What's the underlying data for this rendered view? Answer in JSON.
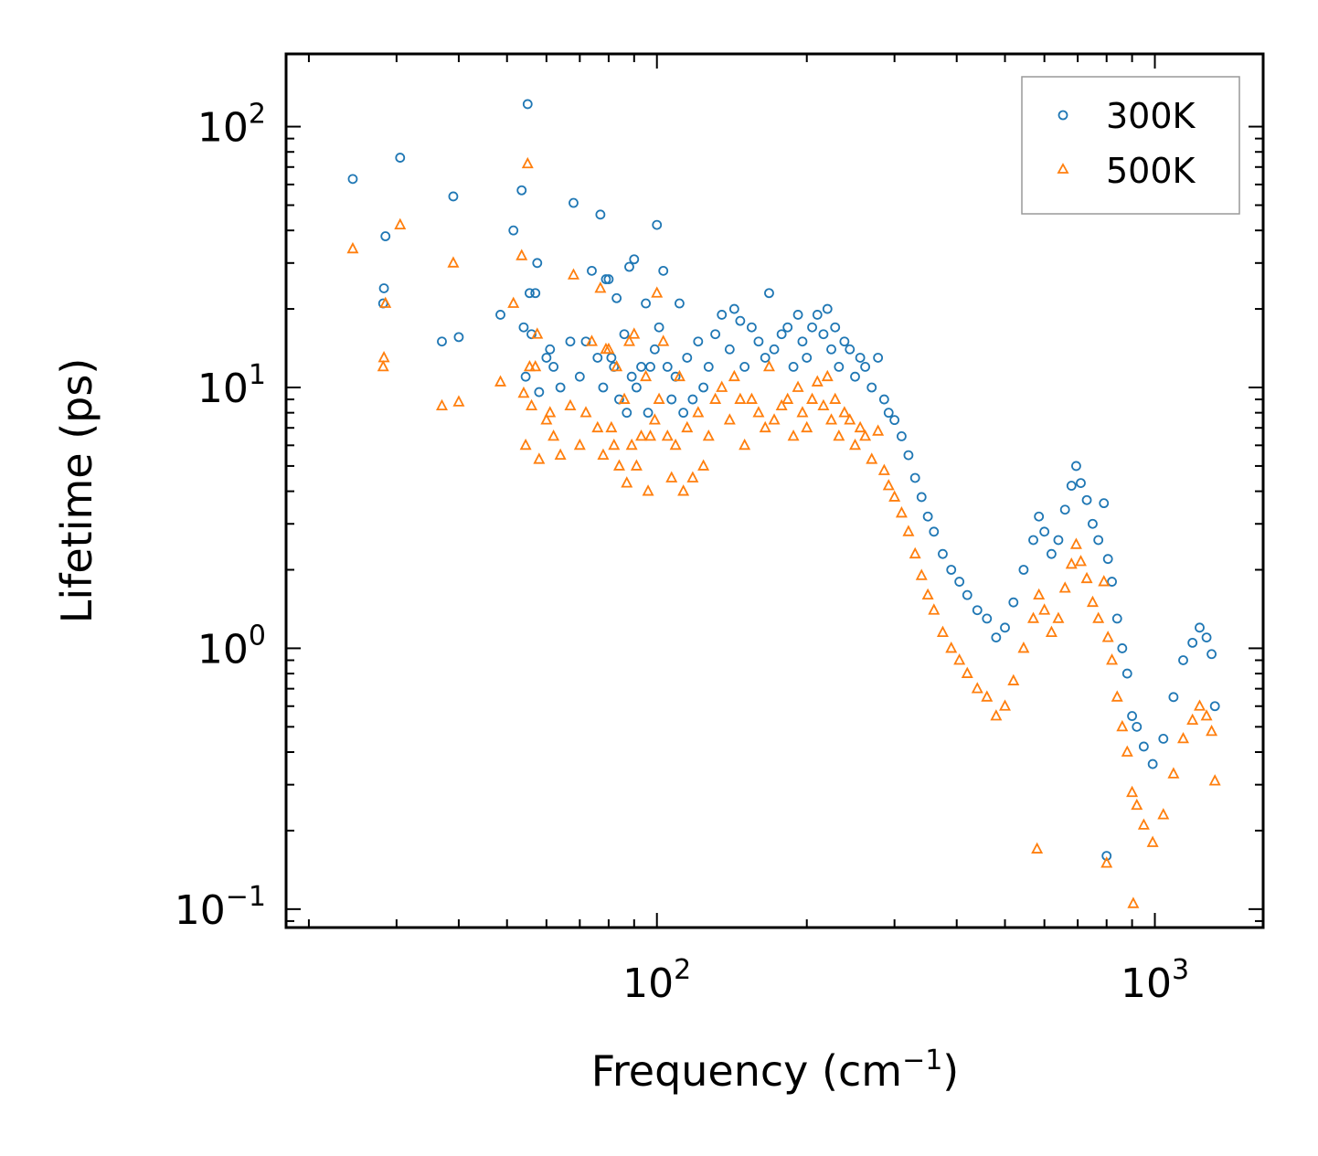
{
  "chart_data": {
    "type": "scatter",
    "title": "",
    "xlabel": "Frequency (cm",
    "xlabel_superscript": "−1",
    "xlabel_suffix": ")",
    "ylabel": "Lifetime (ps)",
    "xscale": "log",
    "yscale": "log",
    "xlim": [
      18,
      1650
    ],
    "ylim": [
      0.085,
      190
    ],
    "grid": false,
    "legend_position": "top-right",
    "x_tick_labels": [
      {
        "value": 100,
        "base": "10",
        "exp": "2"
      },
      {
        "value": 1000,
        "base": "10",
        "exp": "3"
      }
    ],
    "y_tick_labels": [
      {
        "value": 0.1,
        "base": "10",
        "exp": "−1"
      },
      {
        "value": 1,
        "base": "10",
        "exp": "0"
      },
      {
        "value": 10,
        "base": "10",
        "exp": "1"
      },
      {
        "value": 100,
        "base": "10",
        "exp": "2"
      }
    ],
    "series": [
      {
        "name": "300K",
        "marker": "circle",
        "color": "#1f77b4",
        "points": [
          [
            24.5,
            63
          ],
          [
            28.5,
            38
          ],
          [
            28.3,
            24
          ],
          [
            28.2,
            21
          ],
          [
            30.5,
            76
          ],
          [
            37,
            15
          ],
          [
            39,
            54
          ],
          [
            40,
            15.6
          ],
          [
            48.5,
            19
          ],
          [
            51.5,
            40
          ],
          [
            53.5,
            57
          ],
          [
            54,
            17
          ],
          [
            54.5,
            11
          ],
          [
            55,
            122
          ],
          [
            55.5,
            23
          ],
          [
            56,
            16
          ],
          [
            57,
            23
          ],
          [
            57.5,
            30
          ],
          [
            58,
            9.6
          ],
          [
            60,
            13
          ],
          [
            61,
            14
          ],
          [
            62,
            12
          ],
          [
            64,
            10
          ],
          [
            67,
            15
          ],
          [
            68,
            51
          ],
          [
            70,
            11
          ],
          [
            72,
            15
          ],
          [
            74,
            28
          ],
          [
            76,
            13
          ],
          [
            77,
            46
          ],
          [
            78,
            10
          ],
          [
            79,
            26
          ],
          [
            80,
            26
          ],
          [
            81,
            13
          ],
          [
            82,
            12
          ],
          [
            83,
            22
          ],
          [
            84,
            9
          ],
          [
            86,
            16
          ],
          [
            87,
            8
          ],
          [
            88,
            29
          ],
          [
            89,
            11
          ],
          [
            90,
            31
          ],
          [
            91,
            10
          ],
          [
            93,
            12
          ],
          [
            95,
            21
          ],
          [
            96,
            8
          ],
          [
            97,
            12
          ],
          [
            99,
            14
          ],
          [
            100,
            42
          ],
          [
            101,
            17
          ],
          [
            103,
            28
          ],
          [
            105,
            12
          ],
          [
            107,
            9
          ],
          [
            109,
            11
          ],
          [
            111,
            21
          ],
          [
            113,
            8
          ],
          [
            115,
            13
          ],
          [
            118,
            9
          ],
          [
            121,
            15
          ],
          [
            124,
            10
          ],
          [
            127,
            12
          ],
          [
            131,
            16
          ],
          [
            135,
            19
          ],
          [
            140,
            14
          ],
          [
            143,
            20
          ],
          [
            147,
            18
          ],
          [
            150,
            12
          ],
          [
            155,
            17
          ],
          [
            160,
            15
          ],
          [
            165,
            13
          ],
          [
            168,
            23
          ],
          [
            172,
            14
          ],
          [
            178,
            16
          ],
          [
            183,
            17
          ],
          [
            188,
            12
          ],
          [
            192,
            19
          ],
          [
            196,
            15
          ],
          [
            200,
            13
          ],
          [
            205,
            17
          ],
          [
            210,
            19
          ],
          [
            216,
            16
          ],
          [
            220,
            20
          ],
          [
            224,
            14
          ],
          [
            228,
            17
          ],
          [
            232,
            12
          ],
          [
            238,
            15
          ],
          [
            244,
            14
          ],
          [
            250,
            11
          ],
          [
            256,
            13
          ],
          [
            262,
            12
          ],
          [
            270,
            10
          ],
          [
            278,
            13
          ],
          [
            286,
            9
          ],
          [
            292,
            8
          ],
          [
            300,
            7.5
          ],
          [
            310,
            6.5
          ],
          [
            320,
            5.5
          ],
          [
            330,
            4.5
          ],
          [
            340,
            3.8
          ],
          [
            350,
            3.2
          ],
          [
            360,
            2.8
          ],
          [
            375,
            2.3
          ],
          [
            390,
            2.0
          ],
          [
            405,
            1.8
          ],
          [
            420,
            1.6
          ],
          [
            440,
            1.4
          ],
          [
            460,
            1.3
          ],
          [
            480,
            1.1
          ],
          [
            500,
            1.2
          ],
          [
            520,
            1.5
          ],
          [
            545,
            2.0
          ],
          [
            570,
            2.6
          ],
          [
            585,
            3.2
          ],
          [
            600,
            2.8
          ],
          [
            620,
            2.3
          ],
          [
            640,
            2.6
          ],
          [
            660,
            3.4
          ],
          [
            680,
            4.2
          ],
          [
            695,
            5.0
          ],
          [
            710,
            4.3
          ],
          [
            730,
            3.7
          ],
          [
            750,
            3.0
          ],
          [
            770,
            2.6
          ],
          [
            790,
            3.6
          ],
          [
            805,
            2.2
          ],
          [
            820,
            1.8
          ],
          [
            840,
            1.3
          ],
          [
            860,
            1.0
          ],
          [
            880,
            0.8
          ],
          [
            900,
            0.55
          ],
          [
            920,
            0.5
          ],
          [
            950,
            0.42
          ],
          [
            990,
            0.36
          ],
          [
            1040,
            0.45
          ],
          [
            1090,
            0.65
          ],
          [
            1140,
            0.9
          ],
          [
            1190,
            1.05
          ],
          [
            1230,
            1.2
          ],
          [
            1270,
            1.1
          ],
          [
            1300,
            0.95
          ],
          [
            1320,
            0.6
          ],
          [
            800,
            0.16
          ]
        ]
      },
      {
        "name": "500K",
        "marker": "triangle",
        "color": "#ff7f0e",
        "points": [
          [
            24.5,
            34
          ],
          [
            28.5,
            21
          ],
          [
            28.3,
            13
          ],
          [
            28.2,
            12
          ],
          [
            30.5,
            42
          ],
          [
            37,
            8.5
          ],
          [
            39,
            30
          ],
          [
            40,
            8.8
          ],
          [
            48.5,
            10.5
          ],
          [
            51.5,
            21
          ],
          [
            53.5,
            32
          ],
          [
            54,
            9.5
          ],
          [
            54.5,
            6
          ],
          [
            55,
            72
          ],
          [
            55.5,
            12
          ],
          [
            56,
            8.5
          ],
          [
            57,
            12
          ],
          [
            57.5,
            16
          ],
          [
            58,
            5.3
          ],
          [
            60,
            7.5
          ],
          [
            61,
            8
          ],
          [
            62,
            6.5
          ],
          [
            64,
            5.5
          ],
          [
            67,
            8.5
          ],
          [
            68,
            27
          ],
          [
            70,
            6
          ],
          [
            72,
            8
          ],
          [
            74,
            15
          ],
          [
            76,
            7
          ],
          [
            77,
            24
          ],
          [
            78,
            5.5
          ],
          [
            79,
            14
          ],
          [
            80,
            14
          ],
          [
            81,
            7
          ],
          [
            82,
            6
          ],
          [
            83,
            12
          ],
          [
            84,
            5
          ],
          [
            86,
            9
          ],
          [
            87,
            4.3
          ],
          [
            88,
            15
          ],
          [
            89,
            6
          ],
          [
            90,
            16
          ],
          [
            91,
            5
          ],
          [
            93,
            6.5
          ],
          [
            95,
            11
          ],
          [
            96,
            4
          ],
          [
            97,
            6.5
          ],
          [
            99,
            7.5
          ],
          [
            100,
            23
          ],
          [
            101,
            9
          ],
          [
            103,
            15
          ],
          [
            105,
            6.5
          ],
          [
            107,
            4.5
          ],
          [
            109,
            6
          ],
          [
            111,
            11
          ],
          [
            113,
            4
          ],
          [
            115,
            7
          ],
          [
            118,
            4.5
          ],
          [
            121,
            8
          ],
          [
            124,
            5
          ],
          [
            127,
            6.5
          ],
          [
            131,
            9
          ],
          [
            135,
            10
          ],
          [
            140,
            7.5
          ],
          [
            143,
            11
          ],
          [
            147,
            9
          ],
          [
            150,
            6
          ],
          [
            155,
            9
          ],
          [
            160,
            8
          ],
          [
            165,
            7
          ],
          [
            168,
            12
          ],
          [
            172,
            7.5
          ],
          [
            178,
            8.5
          ],
          [
            183,
            9
          ],
          [
            188,
            6.5
          ],
          [
            192,
            10
          ],
          [
            196,
            8
          ],
          [
            200,
            7
          ],
          [
            205,
            9
          ],
          [
            210,
            10.5
          ],
          [
            216,
            8.5
          ],
          [
            220,
            11
          ],
          [
            224,
            7.5
          ],
          [
            228,
            9
          ],
          [
            232,
            6.5
          ],
          [
            238,
            8
          ],
          [
            244,
            7.5
          ],
          [
            250,
            6
          ],
          [
            256,
            7
          ],
          [
            262,
            6.5
          ],
          [
            270,
            5.3
          ],
          [
            278,
            6.8
          ],
          [
            286,
            4.8
          ],
          [
            292,
            4.2
          ],
          [
            300,
            3.8
          ],
          [
            310,
            3.3
          ],
          [
            320,
            2.8
          ],
          [
            330,
            2.3
          ],
          [
            340,
            1.9
          ],
          [
            350,
            1.6
          ],
          [
            360,
            1.4
          ],
          [
            375,
            1.15
          ],
          [
            390,
            1.0
          ],
          [
            405,
            0.9
          ],
          [
            420,
            0.8
          ],
          [
            440,
            0.7
          ],
          [
            460,
            0.65
          ],
          [
            480,
            0.55
          ],
          [
            500,
            0.6
          ],
          [
            520,
            0.75
          ],
          [
            545,
            1.0
          ],
          [
            570,
            1.3
          ],
          [
            580,
            0.17
          ],
          [
            585,
            1.6
          ],
          [
            600,
            1.4
          ],
          [
            620,
            1.15
          ],
          [
            640,
            1.3
          ],
          [
            660,
            1.7
          ],
          [
            680,
            2.1
          ],
          [
            695,
            2.5
          ],
          [
            710,
            2.15
          ],
          [
            730,
            1.85
          ],
          [
            750,
            1.5
          ],
          [
            770,
            1.3
          ],
          [
            790,
            1.8
          ],
          [
            800,
            0.15
          ],
          [
            805,
            1.1
          ],
          [
            820,
            0.9
          ],
          [
            840,
            0.65
          ],
          [
            860,
            0.5
          ],
          [
            880,
            0.4
          ],
          [
            900,
            0.28
          ],
          [
            905,
            0.105
          ],
          [
            920,
            0.25
          ],
          [
            950,
            0.21
          ],
          [
            990,
            0.18
          ],
          [
            1040,
            0.23
          ],
          [
            1090,
            0.33
          ],
          [
            1140,
            0.45
          ],
          [
            1190,
            0.53
          ],
          [
            1230,
            0.6
          ],
          [
            1270,
            0.55
          ],
          [
            1300,
            0.48
          ],
          [
            1320,
            0.31
          ]
        ]
      }
    ]
  }
}
